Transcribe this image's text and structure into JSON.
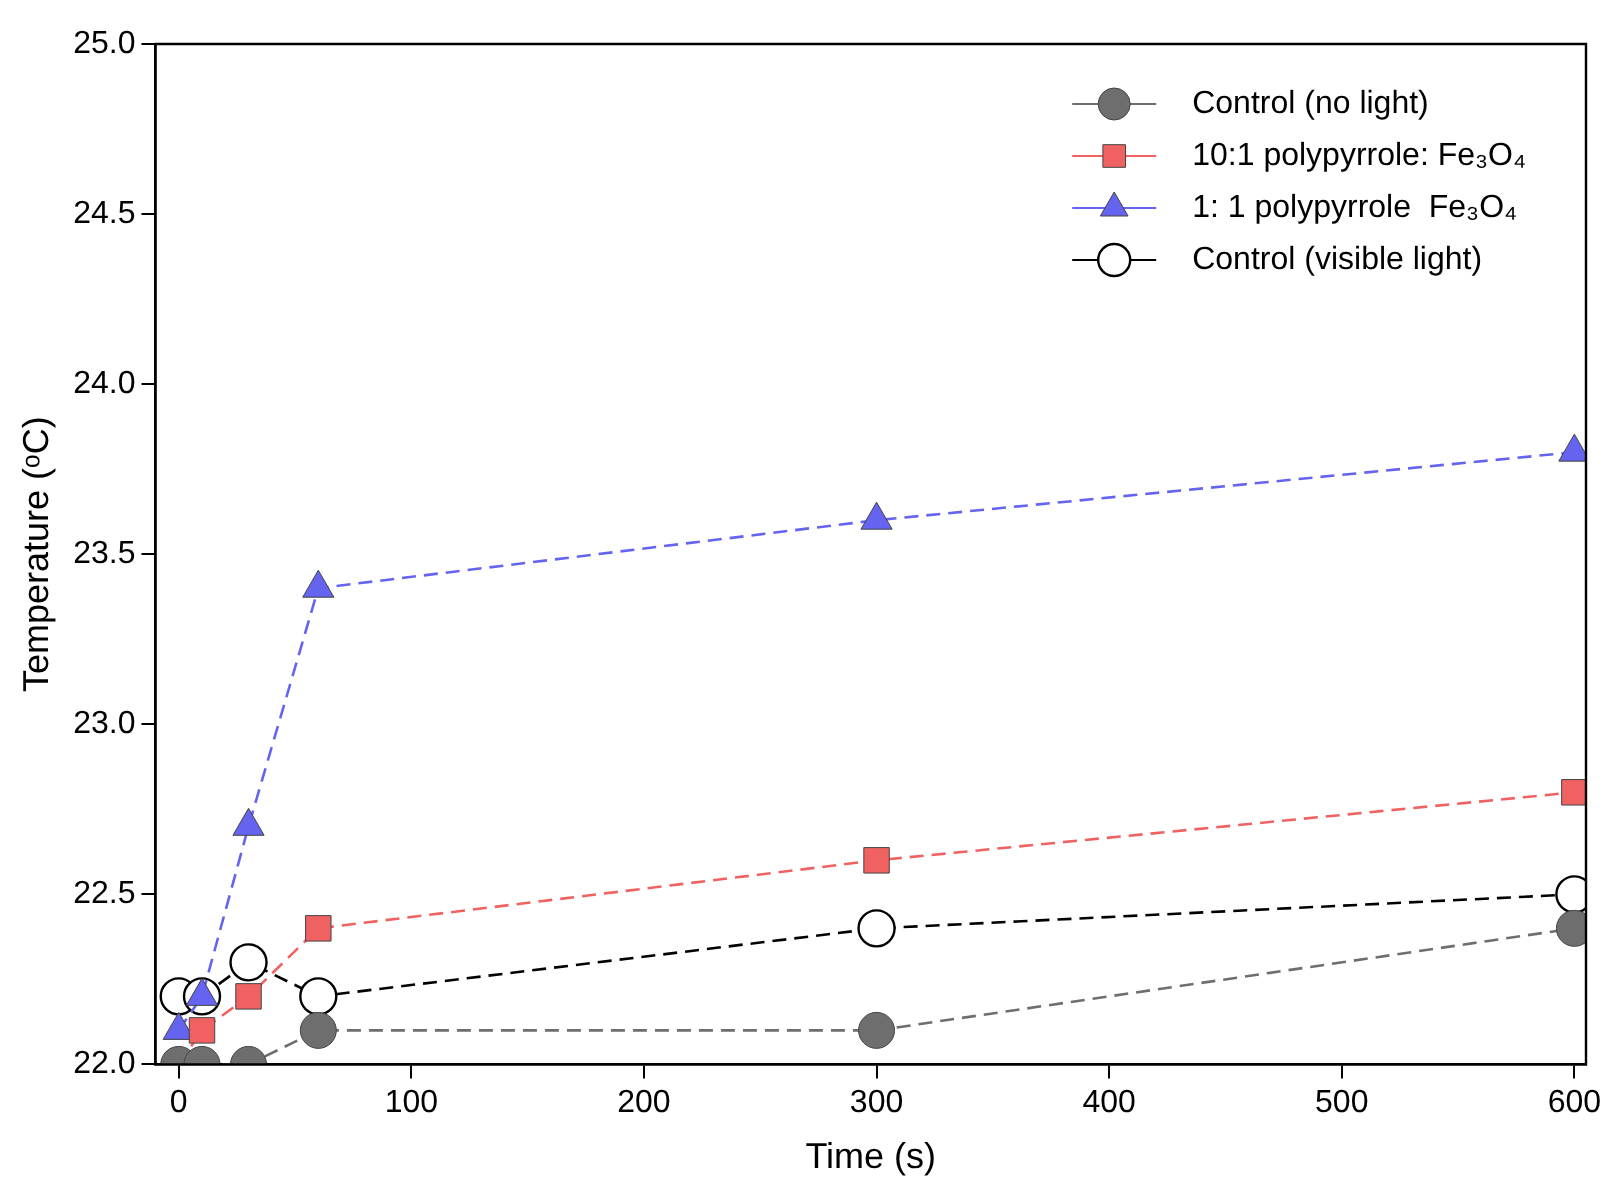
{
  "chart_data": {
    "type": "line",
    "xlabel": "Time (s)",
    "ylabel": "Temperature (ᵒC)",
    "x": [
      0,
      10,
      30,
      60,
      300,
      600
    ],
    "xlim": [
      -10,
      605
    ],
    "xticks": [
      0,
      100,
      200,
      300,
      400,
      500,
      600
    ],
    "ylim": [
      22,
      25
    ],
    "yticks": [
      {
        "value": 22,
        "label": "22.0"
      },
      {
        "value": 22.5,
        "label": "22.5"
      },
      {
        "value": 23,
        "label": "23.0"
      },
      {
        "value": 23.5,
        "label": "23.5"
      },
      {
        "value": 24,
        "label": "24.0"
      },
      {
        "value": 24.5,
        "label": "24.5"
      },
      {
        "value": 25,
        "label": "25.0"
      }
    ],
    "grid": false,
    "legend": "top right",
    "line_style": "dashed",
    "series": [
      {
        "name": "Control (no light)",
        "color": "#6e6e6e",
        "marker": "circle",
        "values": [
          22.0,
          22.0,
          22.0,
          22.1,
          22.1,
          22.4
        ]
      },
      {
        "name": "10:1 polypyrrole: Fe₃O₄",
        "color": "#f06262",
        "marker": "square",
        "values": [
          22.0,
          22.1,
          22.2,
          22.4,
          22.6,
          22.8
        ]
      },
      {
        "name": "1: 1 polypyrrole  Fe₃O₄",
        "color": "#6464f0",
        "marker": "triangle",
        "values": [
          22.1,
          22.2,
          22.7,
          23.4,
          23.6,
          23.8
        ]
      },
      {
        "name": "Control (visible light)",
        "color": "#ffffff",
        "marker": "circle",
        "values": [
          22.2,
          22.2,
          22.3,
          22.2,
          22.4,
          22.5
        ]
      }
    ]
  }
}
